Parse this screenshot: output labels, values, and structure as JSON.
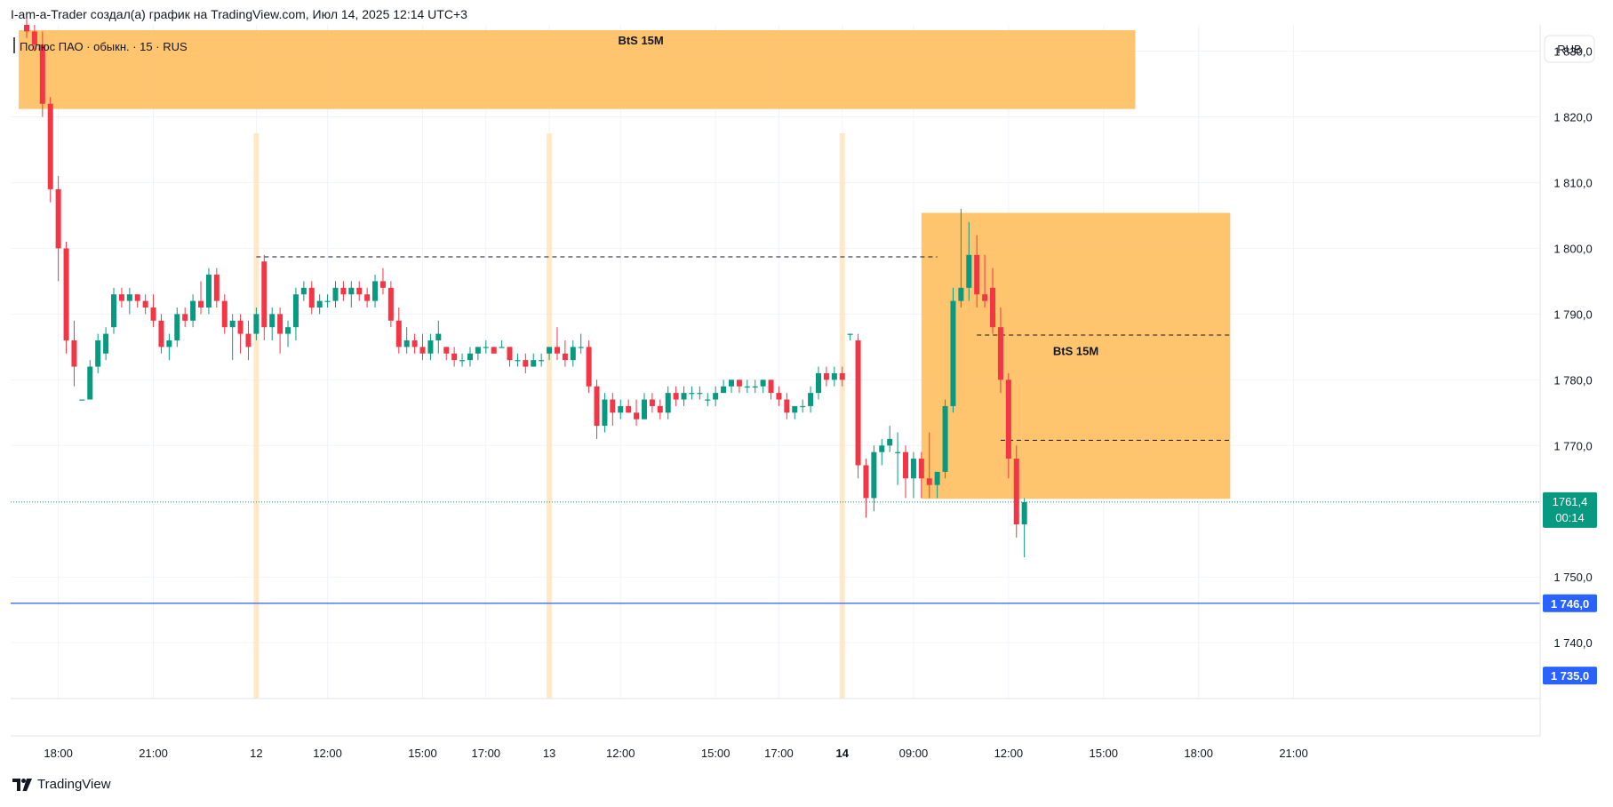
{
  "header": {
    "title": "I-am-a-Trader создал(а) график на TradingView.com, Июл 14, 2025 12:14 UTC+3"
  },
  "legend": {
    "symbol": "Полюс ПАО · обыкн. · 15 · RUS"
  },
  "footer": {
    "brand": "TradingView",
    "logo_icon": "tradingview-logo-icon"
  },
  "colors": {
    "up": "#089981",
    "down": "#f23645",
    "zone": "#ffbe5e",
    "price_tag": "#089981",
    "level_blue": "#2962ff",
    "session_line": "#ffe0b2"
  },
  "chart_data": {
    "type": "candlestick",
    "currency": "RUB",
    "y_ticks": [
      1830,
      1820,
      1810,
      1800,
      1790,
      1780,
      1770,
      1750,
      1740
    ],
    "y_tick_labels": [
      "1 830,0",
      "1 820,0",
      "1 810,0",
      "1 800,0",
      "1 790,0",
      "1 780,0",
      "1 770,0",
      "1 750,0",
      "1 740,0"
    ],
    "ylim": [
      1731.5,
      1834
    ],
    "x_ticks": [
      "18:00",
      "21:00",
      "12",
      "12:00",
      "15:00",
      "17:00",
      "13",
      "12:00",
      "15:00",
      "17:00",
      "14",
      "09:00",
      "12:00",
      "15:00",
      "18:00",
      "21:00"
    ],
    "x_ticks_bold": [
      false,
      false,
      false,
      false,
      false,
      false,
      false,
      false,
      false,
      false,
      true,
      false,
      false,
      false,
      false,
      false
    ],
    "x_tick_bar_index": [
      4,
      16,
      29,
      38,
      50,
      58,
      66,
      75,
      87,
      95,
      103,
      112,
      124,
      136,
      148,
      160
    ],
    "last_price": {
      "value": 1761.4,
      "label": "1761,4",
      "countdown": "00:14"
    },
    "levels": [
      {
        "value": 1746.0,
        "label": "1 746,0",
        "style": "solid"
      },
      {
        "value": 1735.0,
        "label": "1 735,0",
        "style": "tag"
      }
    ],
    "zones": [
      {
        "label": "BtS 15M",
        "bar_from": -1,
        "bar_to": 140,
        "price_top": 1833.5,
        "price_bottom": 1821.2
      },
      {
        "label": "BtS 15M",
        "bar_from": 113,
        "bar_to": 152,
        "price_top": 1805.4,
        "price_bottom": 1761.9
      }
    ],
    "dashed_lines": [
      {
        "bar_from": 29,
        "bar_to": 115,
        "value": 1798.7
      },
      {
        "bar_from": 120,
        "bar_to": 152,
        "value": 1786.8
      },
      {
        "bar_from": 123,
        "bar_to": 152,
        "value": 1770.8
      }
    ],
    "session_markers_bar": [
      29,
      66,
      103
    ],
    "candles": [
      [
        1834,
        1835,
        1832,
        1833
      ],
      [
        1833,
        1834,
        1830,
        1831
      ],
      [
        1831,
        1833,
        1820,
        1822
      ],
      [
        1822,
        1823,
        1807,
        1809
      ],
      [
        1809,
        1811,
        1795,
        1800
      ],
      [
        1800,
        1801,
        1784,
        1786
      ],
      [
        1786,
        1789,
        1779,
        1782
      ],
      [
        1777,
        1777,
        1777,
        1777
      ],
      [
        1777,
        1783,
        1777,
        1782
      ],
      [
        1782,
        1787,
        1781,
        1786
      ],
      [
        1784,
        1788,
        1783,
        1787
      ],
      [
        1788,
        1794,
        1787,
        1793
      ],
      [
        1793,
        1794,
        1791,
        1792
      ],
      [
        1792,
        1794,
        1790,
        1793
      ],
      [
        1793,
        1793,
        1791,
        1792
      ],
      [
        1792,
        1793,
        1790,
        1791
      ],
      [
        1791,
        1793,
        1788,
        1789
      ],
      [
        1789,
        1790,
        1784,
        1785
      ],
      [
        1785,
        1787,
        1783,
        1786
      ],
      [
        1786,
        1791,
        1785,
        1790
      ],
      [
        1790,
        1791,
        1788,
        1789
      ],
      [
        1789,
        1793,
        1788,
        1792
      ],
      [
        1792,
        1795,
        1790,
        1791
      ],
      [
        1791,
        1797,
        1790,
        1796
      ],
      [
        1796,
        1797,
        1791,
        1792
      ],
      [
        1792,
        1793,
        1787,
        1788
      ],
      [
        1788,
        1790,
        1783,
        1789
      ],
      [
        1789,
        1790,
        1784,
        1787
      ],
      [
        1787,
        1789,
        1783,
        1785
      ],
      [
        1787,
        1791,
        1786,
        1790
      ],
      [
        1798,
        1799,
        1786,
        1788
      ],
      [
        1788,
        1791,
        1786,
        1790
      ],
      [
        1790,
        1791,
        1784,
        1787
      ],
      [
        1787,
        1789,
        1785,
        1788
      ],
      [
        1788,
        1794,
        1786,
        1793
      ],
      [
        1793,
        1795,
        1792,
        1794
      ],
      [
        1794,
        1795,
        1790,
        1791
      ],
      [
        1791,
        1793,
        1790,
        1792
      ],
      [
        1792,
        1793,
        1791,
        1792
      ],
      [
        1792,
        1795,
        1791,
        1794
      ],
      [
        1794,
        1795,
        1792,
        1793
      ],
      [
        1793,
        1795,
        1791,
        1794
      ],
      [
        1794,
        1795,
        1792,
        1793
      ],
      [
        1793,
        1794,
        1791,
        1792
      ],
      [
        1792,
        1796,
        1791,
        1795
      ],
      [
        1795,
        1797,
        1793,
        1794
      ],
      [
        1794,
        1795,
        1788,
        1789
      ],
      [
        1789,
        1791,
        1784,
        1785
      ],
      [
        1785,
        1788,
        1784,
        1786
      ],
      [
        1786,
        1787,
        1784,
        1785
      ],
      [
        1785,
        1787,
        1783,
        1784
      ],
      [
        1784,
        1787,
        1783,
        1786
      ],
      [
        1786,
        1789,
        1784,
        1787
      ],
      [
        1785,
        1785,
        1783,
        1784
      ],
      [
        1784,
        1785,
        1782,
        1783
      ],
      [
        1783,
        1784,
        1782,
        1783
      ],
      [
        1783,
        1785,
        1782,
        1784
      ],
      [
        1784,
        1785,
        1783,
        1785
      ],
      [
        1785,
        1786,
        1784,
        1785
      ],
      [
        1785,
        1785,
        1784,
        1784
      ],
      [
        1785,
        1786,
        1785,
        1785
      ],
      [
        1785,
        1785,
        1782,
        1783
      ],
      [
        1783,
        1784,
        1782,
        1783
      ],
      [
        1783,
        1784,
        1781,
        1782
      ],
      [
        1782,
        1784,
        1782,
        1783
      ],
      [
        1783,
        1784,
        1782,
        1783
      ],
      [
        1784,
        1785,
        1783,
        1785
      ],
      [
        1785,
        1788,
        1783,
        1784
      ],
      [
        1784,
        1786,
        1782,
        1783
      ],
      [
        1783,
        1786,
        1782,
        1785
      ],
      [
        1785,
        1787,
        1784,
        1785
      ],
      [
        1785,
        1786,
        1778,
        1779
      ],
      [
        1779,
        1780,
        1771,
        1773
      ],
      [
        1773,
        1778,
        1772,
        1777
      ],
      [
        1777,
        1778,
        1773,
        1775
      ],
      [
        1775,
        1777,
        1774,
        1776
      ],
      [
        1776,
        1777,
        1775,
        1775
      ],
      [
        1775,
        1777,
        1773,
        1774
      ],
      [
        1774,
        1778,
        1774,
        1777
      ],
      [
        1777,
        1778,
        1775,
        1776
      ],
      [
        1776,
        1777,
        1774,
        1775
      ],
      [
        1775,
        1779,
        1774,
        1778
      ],
      [
        1778,
        1779,
        1776,
        1777
      ],
      [
        1777,
        1779,
        1776,
        1778
      ],
      [
        1778,
        1779,
        1777,
        1778
      ],
      [
        1778,
        1779,
        1777,
        1778
      ],
      [
        1777,
        1778,
        1776,
        1777
      ],
      [
        1777,
        1779,
        1776,
        1778
      ],
      [
        1778,
        1780,
        1778,
        1779
      ],
      [
        1779,
        1780,
        1778,
        1780
      ],
      [
        1780,
        1780,
        1778,
        1779
      ],
      [
        1779,
        1780,
        1778,
        1779
      ],
      [
        1779,
        1780,
        1778,
        1779
      ],
      [
        1779,
        1780,
        1778,
        1780
      ],
      [
        1780,
        1780,
        1777,
        1778
      ],
      [
        1778,
        1779,
        1776,
        1777
      ],
      [
        1777,
        1778,
        1774,
        1775
      ],
      [
        1775,
        1776,
        1774,
        1776
      ],
      [
        1776,
        1777,
        1775,
        1776
      ],
      [
        1776,
        1779,
        1775,
        1778
      ],
      [
        1778,
        1782,
        1777,
        1781
      ],
      [
        1781,
        1782,
        1779,
        1780
      ],
      [
        1780,
        1782,
        1779,
        1781
      ],
      [
        1781,
        1782,
        1779,
        1780
      ],
      [
        1787,
        1787,
        1786,
        1787
      ],
      [
        1786,
        1787,
        1765,
        1767
      ],
      [
        1767,
        1768,
        1759,
        1762
      ],
      [
        1762,
        1770,
        1760,
        1769
      ],
      [
        1769,
        1771,
        1767,
        1770
      ],
      [
        1770,
        1773,
        1769,
        1771
      ],
      [
        1769,
        1772,
        1764,
        1769
      ],
      [
        1769,
        1770,
        1762,
        1765
      ],
      [
        1765,
        1769,
        1762,
        1768
      ],
      [
        1768,
        1769,
        1762,
        1765
      ],
      [
        1765,
        1772,
        1762,
        1764
      ],
      [
        1764,
        1766,
        1762,
        1766
      ],
      [
        1766,
        1777,
        1765,
        1776
      ],
      [
        1776,
        1794,
        1775,
        1792
      ],
      [
        1792,
        1806,
        1791,
        1794
      ],
      [
        1794,
        1804,
        1792,
        1799
      ],
      [
        1799,
        1802,
        1791,
        1793
      ],
      [
        1793,
        1799,
        1791,
        1792
      ],
      [
        1794,
        1797,
        1787,
        1788
      ],
      [
        1788,
        1791,
        1778,
        1780
      ],
      [
        1780,
        1781,
        1765,
        1768
      ],
      [
        1768,
        1770,
        1756,
        1758
      ],
      [
        1758,
        1762,
        1753,
        1761.4
      ]
    ]
  }
}
